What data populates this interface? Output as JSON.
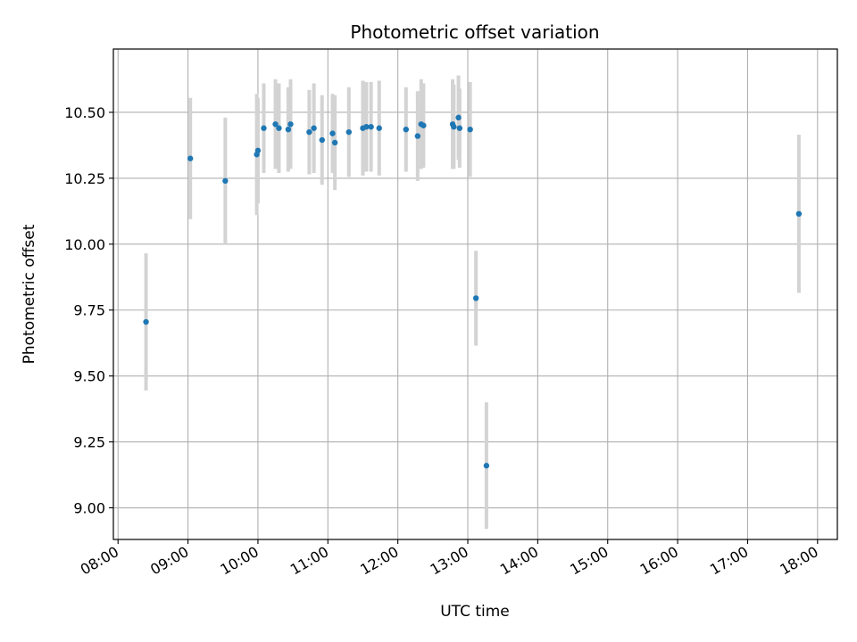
{
  "chart_data": {
    "type": "scatter",
    "title": "Photometric offset variation",
    "xlabel": "UTC time",
    "ylabel": "Photometric offset",
    "x_ticks": [
      "08:00",
      "09:00",
      "10:00",
      "11:00",
      "12:00",
      "13:00",
      "14:00",
      "15:00",
      "16:00",
      "17:00",
      "18:00"
    ],
    "y_ticks": [
      "9.00",
      "9.25",
      "9.50",
      "9.75",
      "10.00",
      "10.25",
      "10.50"
    ],
    "xlim": [
      "07:56",
      "18:17"
    ],
    "ylim": [
      8.88,
      10.74
    ],
    "grid": true,
    "colors": {
      "point": "#1f77b4",
      "errorbar": "#d3d3d3",
      "grid": "#b0b0b0"
    },
    "points": [
      {
        "time": "08:24",
        "y": 9.705,
        "err": 0.26
      },
      {
        "time": "09:02",
        "y": 10.325,
        "err": 0.23
      },
      {
        "time": "09:32",
        "y": 10.24,
        "err": 0.24
      },
      {
        "time": "09:59",
        "y": 10.34,
        "err": 0.23
      },
      {
        "time": "10:00",
        "y": 10.355,
        "err": 0.2
      },
      {
        "time": "10:05",
        "y": 10.44,
        "err": 0.17
      },
      {
        "time": "10:15",
        "y": 10.455,
        "err": 0.17
      },
      {
        "time": "10:18",
        "y": 10.44,
        "err": 0.17
      },
      {
        "time": "10:26",
        "y": 10.435,
        "err": 0.16
      },
      {
        "time": "10:28",
        "y": 10.455,
        "err": 0.17
      },
      {
        "time": "10:44",
        "y": 10.425,
        "err": 0.16
      },
      {
        "time": "10:48",
        "y": 10.44,
        "err": 0.17
      },
      {
        "time": "10:55",
        "y": 10.395,
        "err": 0.17
      },
      {
        "time": "11:04",
        "y": 10.42,
        "err": 0.15
      },
      {
        "time": "11:06",
        "y": 10.385,
        "err": 0.18
      },
      {
        "time": "11:18",
        "y": 10.425,
        "err": 0.17
      },
      {
        "time": "11:30",
        "y": 10.44,
        "err": 0.18
      },
      {
        "time": "11:33",
        "y": 10.445,
        "err": 0.17
      },
      {
        "time": "11:37",
        "y": 10.445,
        "err": 0.17
      },
      {
        "time": "11:44",
        "y": 10.44,
        "err": 0.18
      },
      {
        "time": "12:07",
        "y": 10.435,
        "err": 0.16
      },
      {
        "time": "12:17",
        "y": 10.41,
        "err": 0.17
      },
      {
        "time": "12:20",
        "y": 10.455,
        "err": 0.17
      },
      {
        "time": "12:22",
        "y": 10.45,
        "err": 0.16
      },
      {
        "time": "12:47",
        "y": 10.455,
        "err": 0.17
      },
      {
        "time": "12:48",
        "y": 10.445,
        "err": 0.16
      },
      {
        "time": "12:52",
        "y": 10.48,
        "err": 0.16
      },
      {
        "time": "12:53",
        "y": 10.44,
        "err": 0.15
      },
      {
        "time": "13:02",
        "y": 10.435,
        "err": 0.18
      },
      {
        "time": "13:07",
        "y": 9.795,
        "err": 0.18
      },
      {
        "time": "13:16",
        "y": 9.16,
        "err": 0.24
      },
      {
        "time": "17:44",
        "y": 10.115,
        "err": 0.3
      }
    ]
  }
}
